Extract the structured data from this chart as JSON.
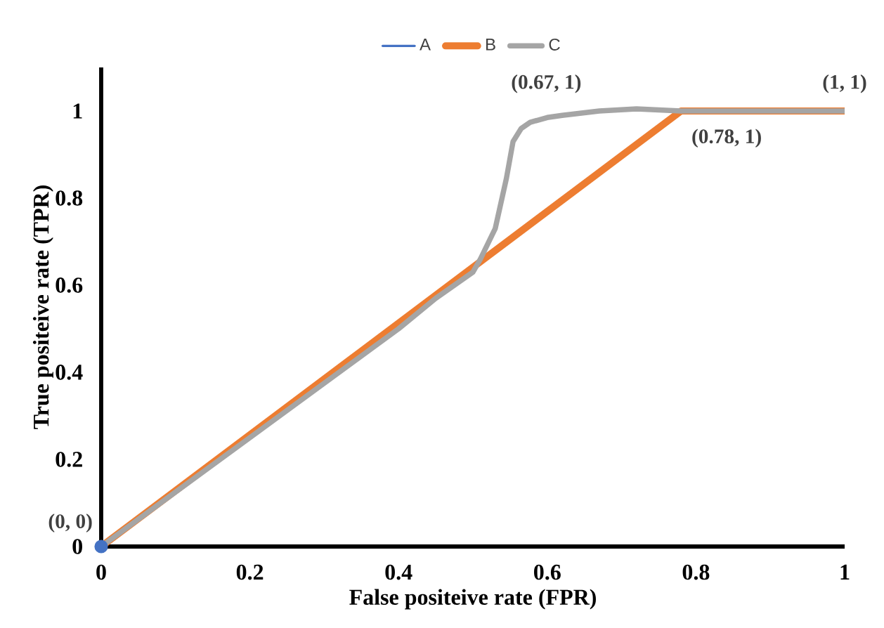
{
  "chart_data": {
    "type": "line",
    "xlabel": "False positeive rate (FPR)",
    "ylabel": "True positeive rate (TPR)",
    "xlim": [
      0,
      1
    ],
    "ylim": [
      0,
      1.1
    ],
    "xticks": [
      0,
      0.2,
      0.4,
      0.6,
      0.8,
      1
    ],
    "yticks": [
      0,
      0.2,
      0.4,
      0.6,
      0.8,
      1
    ],
    "grid": false,
    "legend": "top",
    "line_style": "solid",
    "series": [
      {
        "name": "A",
        "color": "#4472c4",
        "x": [
          0
        ],
        "values": [
          0
        ],
        "marker": "circle"
      },
      {
        "name": "B",
        "color": "#ed7d31",
        "x": [
          0,
          0.78,
          1
        ],
        "values": [
          0,
          1,
          1
        ]
      },
      {
        "name": "C",
        "color": "#a5a5a5",
        "x": [
          0,
          0.2,
          0.4,
          0.45,
          0.5,
          0.51,
          0.53,
          0.545,
          0.554,
          0.565,
          0.577,
          0.6,
          0.62,
          0.67,
          0.72,
          0.78,
          0.85,
          1
        ],
        "values": [
          0,
          0.25,
          0.5,
          0.57,
          0.63,
          0.66,
          0.73,
          0.845,
          0.93,
          0.96,
          0.974,
          0.985,
          0.99,
          1,
          1.005,
          1,
          1,
          1
        ]
      }
    ],
    "annotations": [
      {
        "text": "(0, 0)",
        "x": 0,
        "y": 0
      },
      {
        "text": "(0.67, 1)",
        "x": 0.67,
        "y": 1
      },
      {
        "text": "(0.78, 1)",
        "x": 0.78,
        "y": 1
      },
      {
        "text": "(1, 1)",
        "x": 1,
        "y": 1
      }
    ]
  }
}
